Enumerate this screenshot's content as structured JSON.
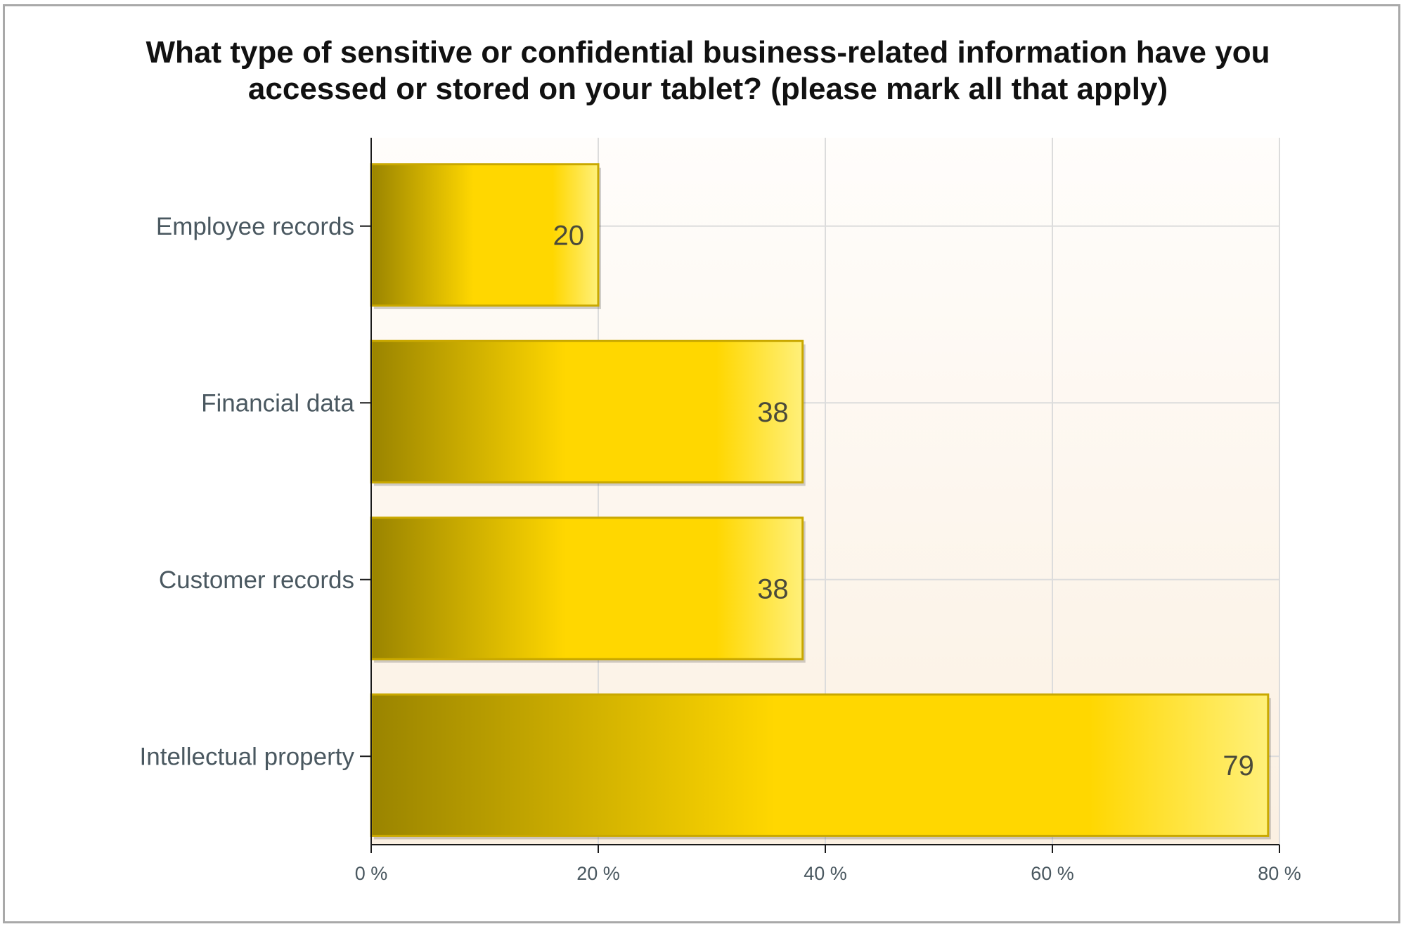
{
  "chart_data": {
    "type": "bar",
    "orientation": "horizontal",
    "title": "What type of sensitive or confidential business-related information have you accessed or stored on your tablet? (please mark all that apply)",
    "categories": [
      "Employee records",
      "Financial data",
      "Customer records",
      "Intellectual property"
    ],
    "values": [
      20,
      38,
      38,
      79
    ],
    "value_labels": [
      "20",
      "38",
      "38",
      "79"
    ],
    "xlim": [
      0,
      80
    ],
    "x_ticks": [
      0,
      20,
      40,
      60,
      80
    ],
    "x_tick_labels": [
      "0 %",
      "20 %",
      "40 %",
      "60 %",
      "80 %"
    ],
    "grid": true,
    "colors": {
      "bar_dark": "#9a8400",
      "bar_mid": "#ffd700",
      "bar_light": "#fff07a",
      "bar_edge": "#c9a800",
      "plot_bg_top": "#fffdfb",
      "plot_bg_bottom": "#fbf0e2",
      "grid": "#dcdcdc"
    }
  }
}
